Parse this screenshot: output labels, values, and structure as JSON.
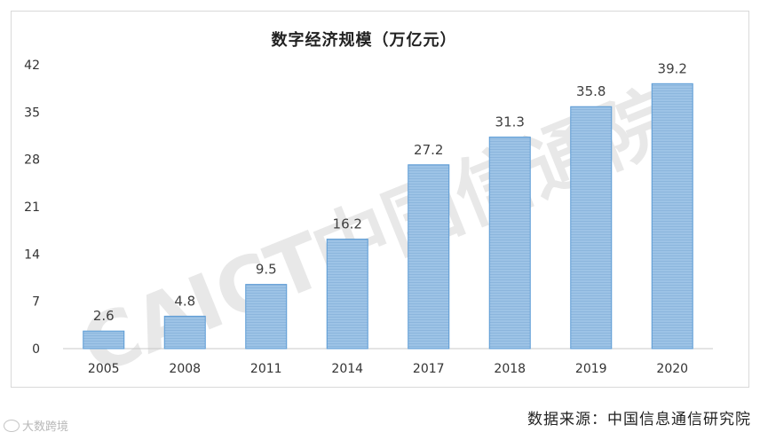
{
  "chart_data": {
    "type": "bar",
    "title": "数字经济规模（万亿元）",
    "categories": [
      "2005",
      "2008",
      "2011",
      "2014",
      "2017",
      "2018",
      "2019",
      "2020"
    ],
    "values": [
      2.6,
      4.8,
      9.5,
      16.2,
      27.2,
      31.3,
      35.8,
      39.2
    ],
    "value_labels": [
      "2.6",
      "4.8",
      "9.5",
      "16.2",
      "27.2",
      "31.3",
      "35.8",
      "39.2"
    ],
    "yticks": [
      "0",
      "7",
      "14",
      "21",
      "28",
      "35",
      "42"
    ],
    "ylim": [
      0,
      42
    ],
    "xlabel": "",
    "ylabel": "",
    "bar_color": "#9dc3e6",
    "bar_edge_color": "#5b9bd5",
    "grid": false,
    "legend": "none"
  },
  "watermark": {
    "brand": "CAICT",
    "org": "中国信通院"
  },
  "source": "数据来源：中国信息通信研究院",
  "logo": "大数跨境"
}
